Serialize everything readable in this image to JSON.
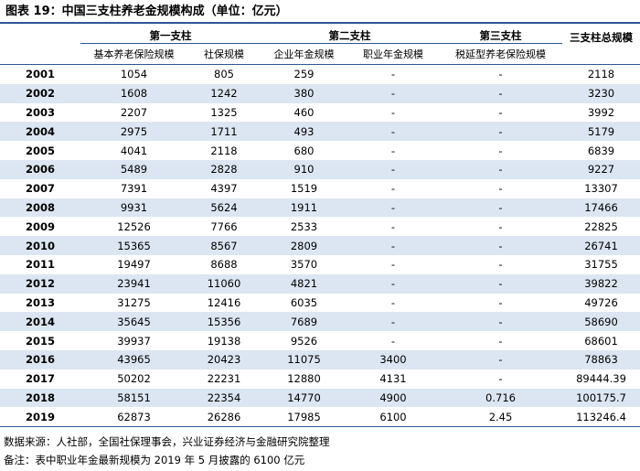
{
  "header": {
    "title": "图表 19：中国三支柱养老金规模构成（单位：亿元）"
  },
  "table": {
    "groups": [
      "第一支柱",
      "第二支柱",
      "第三支柱",
      "三支柱总规模"
    ],
    "columns": [
      "基本养老保险规模",
      "社保规模",
      "企业年金规模",
      "职业年金规模",
      "税延型养老保险规模"
    ],
    "rows": [
      [
        "2001",
        "1054",
        "805",
        "259",
        "-",
        "-",
        "2118"
      ],
      [
        "2002",
        "1608",
        "1242",
        "380",
        "-",
        "-",
        "3230"
      ],
      [
        "2003",
        "2207",
        "1325",
        "460",
        "-",
        "-",
        "3992"
      ],
      [
        "2004",
        "2975",
        "1711",
        "493",
        "-",
        "-",
        "5179"
      ],
      [
        "2005",
        "4041",
        "2118",
        "680",
        "-",
        "-",
        "6839"
      ],
      [
        "2006",
        "5489",
        "2828",
        "910",
        "-",
        "-",
        "9227"
      ],
      [
        "2007",
        "7391",
        "4397",
        "1519",
        "-",
        "-",
        "13307"
      ],
      [
        "2008",
        "9931",
        "5624",
        "1911",
        "-",
        "-",
        "17466"
      ],
      [
        "2009",
        "12526",
        "7766",
        "2533",
        "-",
        "-",
        "22825"
      ],
      [
        "2010",
        "15365",
        "8567",
        "2809",
        "-",
        "-",
        "26741"
      ],
      [
        "2011",
        "19497",
        "8688",
        "3570",
        "-",
        "-",
        "31755"
      ],
      [
        "2012",
        "23941",
        "11060",
        "4821",
        "-",
        "-",
        "39822"
      ],
      [
        "2013",
        "31275",
        "12416",
        "6035",
        "-",
        "-",
        "49726"
      ],
      [
        "2014",
        "35645",
        "15356",
        "7689",
        "-",
        "-",
        "58690"
      ],
      [
        "2015",
        "39937",
        "19138",
        "9526",
        "-",
        "-",
        "68601"
      ],
      [
        "2016",
        "43965",
        "20423",
        "11075",
        "3400",
        "-",
        "78863"
      ],
      [
        "2017",
        "50202",
        "22231",
        "12880",
        "4131",
        "-",
        "89444.39"
      ],
      [
        "2018",
        "58151",
        "22354",
        "14770",
        "4900",
        "0.716",
        "100175.7"
      ],
      [
        "2019",
        "62873",
        "26286",
        "17985",
        "6100",
        "2.45",
        "113246.4"
      ]
    ]
  },
  "footer": {
    "source": "数据来源：人社部，全国社保理事会，兴业证券经济与金融研究院整理",
    "note": "备注：表中职业年金最新规模为 2019 年 5 月披露的 6100 亿元"
  }
}
